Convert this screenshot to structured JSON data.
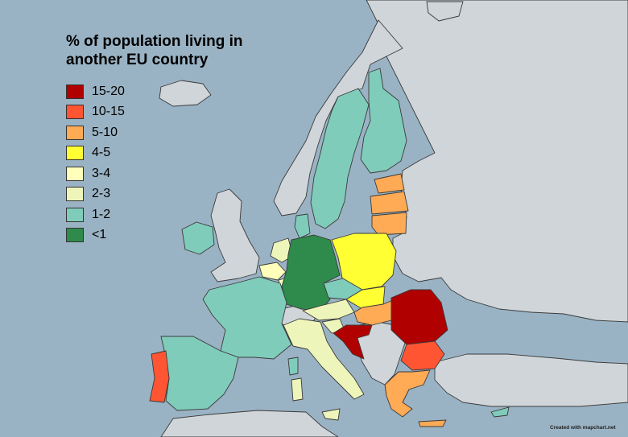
{
  "legend": {
    "title_line1": "% of population living in",
    "title_line2": "another EU country",
    "classes": [
      {
        "label": "15-20",
        "color": "#b00000"
      },
      {
        "label": "10-15",
        "color": "#ff5533"
      },
      {
        "label": "5-10",
        "color": "#ffaa55"
      },
      {
        "label": "4-5",
        "color": "#ffff33"
      },
      {
        "label": "3-4",
        "color": "#ffffbb"
      },
      {
        "label": "2-3",
        "color": "#eef5bb"
      },
      {
        "label": "1-2",
        "color": "#80ccbb"
      },
      {
        "label": "<1",
        "color": "#2e8b4b"
      }
    ]
  },
  "colors": {
    "sea": "#9ab3c4",
    "non_eu": "#d0d5d9",
    "border": "#3a3a3a"
  },
  "countries": [
    {
      "name": "Romania",
      "class": "15-20"
    },
    {
      "name": "Croatia",
      "class": "15-20"
    },
    {
      "name": "Portugal",
      "class": "10-15"
    },
    {
      "name": "Bulgaria",
      "class": "10-15"
    },
    {
      "name": "Lithuania",
      "class": "5-10"
    },
    {
      "name": "Latvia",
      "class": "5-10"
    },
    {
      "name": "Estonia",
      "class": "5-10"
    },
    {
      "name": "Hungary",
      "class": "5-10"
    },
    {
      "name": "Greece",
      "class": "5-10"
    },
    {
      "name": "Poland",
      "class": "4-5"
    },
    {
      "name": "Slovakia",
      "class": "4-5"
    },
    {
      "name": "Belgium",
      "class": "3-4"
    },
    {
      "name": "Luxembourg",
      "class": "3-4"
    },
    {
      "name": "Italy",
      "class": "2-3"
    },
    {
      "name": "Netherlands",
      "class": "2-3"
    },
    {
      "name": "Austria",
      "class": "2-3"
    },
    {
      "name": "Slovenia",
      "class": "2-3"
    },
    {
      "name": "France",
      "class": "1-2"
    },
    {
      "name": "Spain",
      "class": "1-2"
    },
    {
      "name": "Ireland",
      "class": "1-2"
    },
    {
      "name": "Sweden",
      "class": "1-2"
    },
    {
      "name": "Finland",
      "class": "1-2"
    },
    {
      "name": "Denmark",
      "class": "1-2"
    },
    {
      "name": "Czechia",
      "class": "1-2"
    },
    {
      "name": "Cyprus",
      "class": "1-2"
    },
    {
      "name": "Germany",
      "class": "<1"
    }
  ],
  "credit": "Created with mapchart.net"
}
